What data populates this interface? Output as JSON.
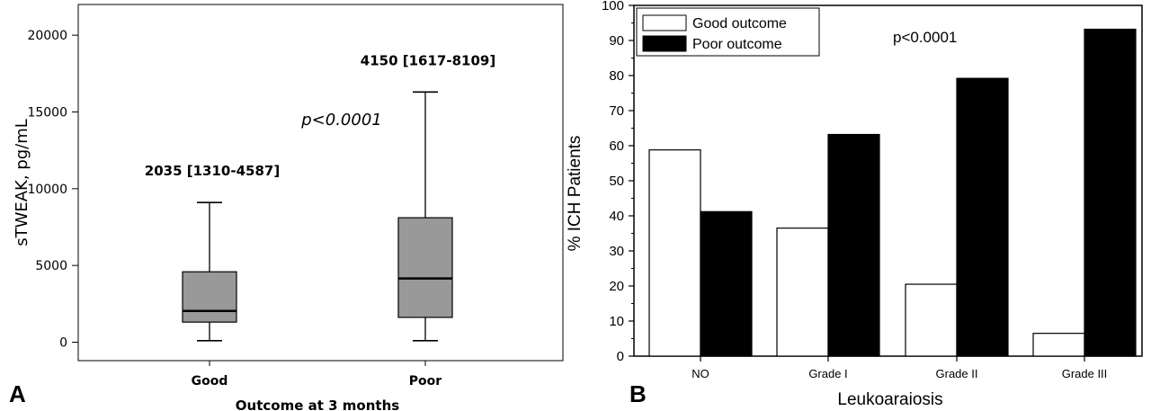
{
  "chart_data": [
    {
      "type": "box",
      "panel": "A",
      "ylabel": "sTWEAK, pg/mL",
      "xlabel": "Outcome at 3 months",
      "ylim": [
        -1200,
        22000
      ],
      "yticks": [
        0,
        5000,
        10000,
        15000,
        20000
      ],
      "categories": [
        "Good",
        "Poor"
      ],
      "boxes": [
        {
          "category": "Good",
          "whisker_low": 100,
          "q1": 1310,
          "median": 2035,
          "q3": 4587,
          "whisker_high": 9100,
          "label": "2035 [1310-4587]"
        },
        {
          "category": "Poor",
          "whisker_low": 100,
          "q1": 1617,
          "median": 4150,
          "q3": 8109,
          "whisker_high": 16300,
          "label": "4150 [1617-8109]"
        }
      ],
      "annotation": "p<0.0001",
      "box_color": "#999999"
    },
    {
      "type": "bar",
      "panel": "B",
      "ylabel": "% ICH Patients",
      "xlabel": "Leukoaraiosis",
      "ylim": [
        0,
        100
      ],
      "yticks": [
        0,
        10,
        20,
        30,
        40,
        50,
        60,
        70,
        80,
        90,
        100
      ],
      "categories": [
        "NO",
        "Grade I",
        "Grade II",
        "Grade III"
      ],
      "series": [
        {
          "name": "Good outcome",
          "values": [
            58.8,
            36.5,
            20.5,
            6.5
          ],
          "color": "#ffffff"
        },
        {
          "name": "Poor outcome",
          "values": [
            41.2,
            63.2,
            79.2,
            93.2
          ],
          "color": "#000000"
        }
      ],
      "annotation": "p<0.0001",
      "legend_position": "top-left"
    }
  ]
}
